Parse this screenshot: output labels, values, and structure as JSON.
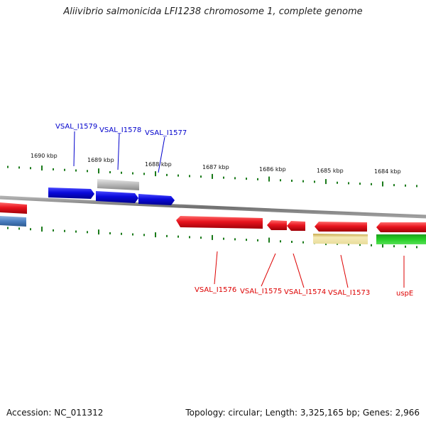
{
  "title": "Aliivibrio salmonicida LFI1238 chromosome 1, complete genome",
  "footer": {
    "accession": "Accession: NC_011312",
    "topology": "Topology: circular; Length: 3,325,165 bp; Genes: 2,966"
  },
  "ruler_labels": [
    "1690 kbp",
    "1689 kbp",
    "1688 kbp",
    "1687 kbp",
    "1686 kbp",
    "1685 kbp",
    "1684 kbp"
  ],
  "gene_labels": {
    "top": [
      "VSAL_I1579",
      "VSAL_I1578",
      "VSAL_I1577"
    ],
    "bottom": [
      "VSAL_I1576",
      "VSAL_I1575",
      "VSAL_I1574",
      "VSAL_I1573",
      "uspE"
    ]
  },
  "colors": {
    "forward_cds": "#0a0adc",
    "reverse_cds": "#e8141e",
    "gene_blue": "#4a7fc0",
    "gray_feature": "#b8b8b8",
    "yellow_feature": "#efe3a0",
    "green_feature": "#22cc22",
    "ruler": "#1a7a1a",
    "backbone": "#808080"
  }
}
